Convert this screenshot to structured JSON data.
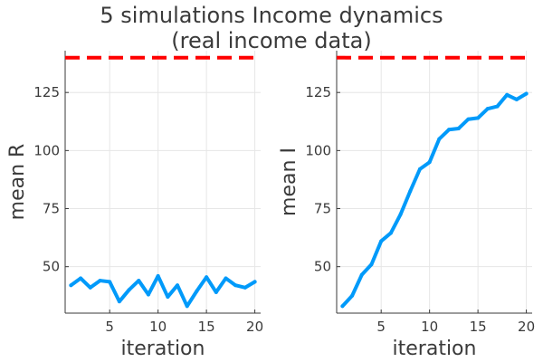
{
  "title": {
    "line1": "5 simulations Income dynamics",
    "line2": "(real income data)"
  },
  "colors": {
    "series": "#009AFA",
    "reference": "#FF0000",
    "grid": "#E6E6E6",
    "axis": "#3A3A3A"
  },
  "chart_data": [
    {
      "type": "line",
      "xlabel": "iteration",
      "ylabel": "mean R",
      "xlim": [
        0.4,
        20.6
      ],
      "ylim": [
        30,
        143
      ],
      "x_ticks": [
        5,
        10,
        15,
        20
      ],
      "y_ticks": [
        50,
        75,
        100,
        125
      ],
      "grid": true,
      "legend": "none",
      "reference_line": {
        "y": 140,
        "style": "dashed",
        "color": "#FF0000"
      },
      "series": [
        {
          "x": [
            1,
            2,
            3,
            4,
            5,
            6,
            7,
            8,
            9,
            10,
            11,
            12,
            13,
            14,
            15,
            16,
            17,
            18,
            19,
            20
          ],
          "values": [
            42,
            45,
            41,
            44,
            43.5,
            35,
            40,
            44,
            38,
            46,
            37,
            42,
            33,
            39.5,
            45.5,
            39,
            45,
            42,
            41,
            43.5
          ]
        }
      ]
    },
    {
      "type": "line",
      "xlabel": "iteration",
      "ylabel": "mean I",
      "xlim": [
        0.4,
        20.6
      ],
      "ylim": [
        30,
        143
      ],
      "x_ticks": [
        5,
        10,
        15,
        20
      ],
      "y_ticks": [
        50,
        75,
        100,
        125
      ],
      "grid": true,
      "legend": "none",
      "reference_line": {
        "y": 140,
        "style": "dashed",
        "color": "#FF0000"
      },
      "series": [
        {
          "x": [
            1,
            2,
            3,
            4,
            5,
            6,
            7,
            8,
            9,
            10,
            11,
            12,
            13,
            14,
            15,
            16,
            17,
            18,
            19,
            20
          ],
          "values": [
            33,
            37.5,
            46.5,
            51,
            61,
            64.5,
            72.5,
            82.5,
            92,
            95,
            105,
            109,
            109.5,
            113.5,
            114,
            118,
            119,
            124,
            122,
            124.5
          ]
        }
      ]
    }
  ]
}
